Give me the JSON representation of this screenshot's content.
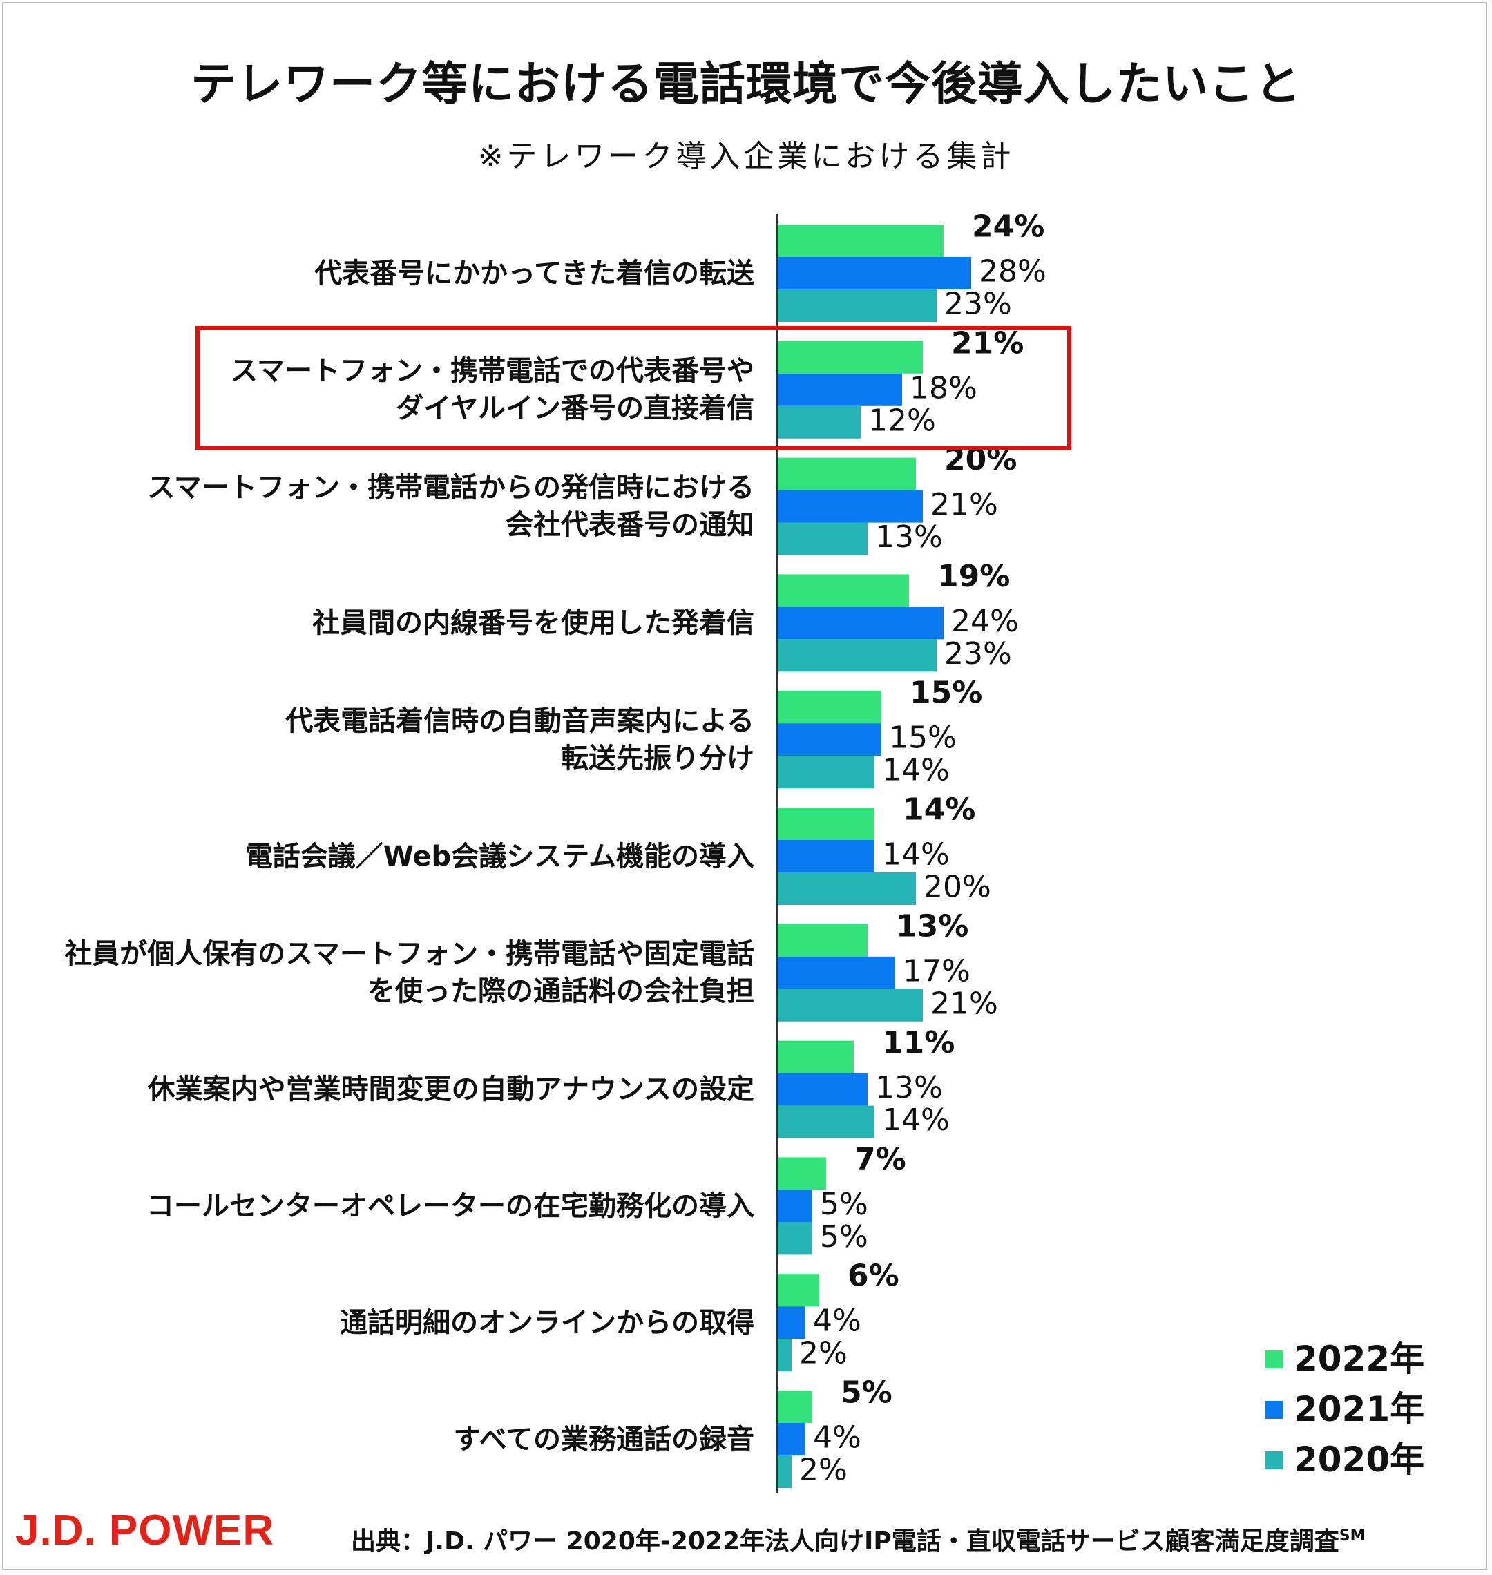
{
  "chart_data": {
    "type": "bar",
    "orientation": "horizontal",
    "title": "テレワーク等における電話環境で今後導入したいこと",
    "subtitle": "※テレワーク導入企業における集計",
    "categories": [
      "代表番号にかかってきた着信の転送",
      "スマートフォン・携帯電話での代表番号や\nダイヤルイン番号の直接着信",
      "スマートフォン・携帯電話からの発信時における\n会社代表番号の通知",
      "社員間の内線番号を使用した発着信",
      "代表電話着信時の自動音声案内による\n転送先振り分け",
      "電話会議／Web会議システム機能の導入",
      "社員が個人保有のスマートフォン・携帯電話や固定電話\nを使った際の通話料の会社負担",
      "休業案内や営業時間変更の自動アナウンスの設定",
      "コールセンターオペレーターの在宅勤務化の導入",
      "通話明細のオンラインからの取得",
      "すべての業務通話の録音"
    ],
    "series": [
      {
        "name": "2022年",
        "color": "#33e37a",
        "values": [
          24,
          21,
          20,
          19,
          15,
          14,
          13,
          11,
          7,
          6,
          5
        ],
        "labels": [
          "24%",
          "21%",
          "20%",
          "19%",
          "15%",
          "14%",
          "13%",
          "11%",
          "7%",
          "6%",
          "5%"
        ],
        "bold": true
      },
      {
        "name": "2021年",
        "color": "#0a7af3",
        "values": [
          28,
          18,
          21,
          24,
          15,
          14,
          17,
          13,
          5,
          4,
          4
        ],
        "labels": [
          "28%",
          "18%",
          "21%",
          "24%",
          "15%",
          "14%",
          "17%",
          "13%",
          "5%",
          "4%",
          "4%"
        ],
        "bold": false
      },
      {
        "name": "2020年",
        "color": "#24b4b4",
        "values": [
          23,
          12,
          13,
          23,
          14,
          20,
          21,
          14,
          5,
          2,
          2
        ],
        "labels": [
          "23%",
          "12%",
          "13%",
          "23%",
          "14%",
          "20%",
          "21%",
          "14%",
          "5%",
          "2%",
          "2%"
        ],
        "bold": false
      }
    ],
    "xlim": [
      0,
      100
    ],
    "grid": false,
    "highlighted_category_index": 1,
    "legend": [
      "2022年",
      "2021年",
      "2020年"
    ],
    "legend_position": "bottom-right"
  },
  "footer": {
    "logo_text": "J.D. POWER",
    "source_text": "出典：J.D. パワー 2020年-2022年法人向けIP電話・直収電話サービス顧客満足度調査",
    "source_sup": "SM"
  }
}
